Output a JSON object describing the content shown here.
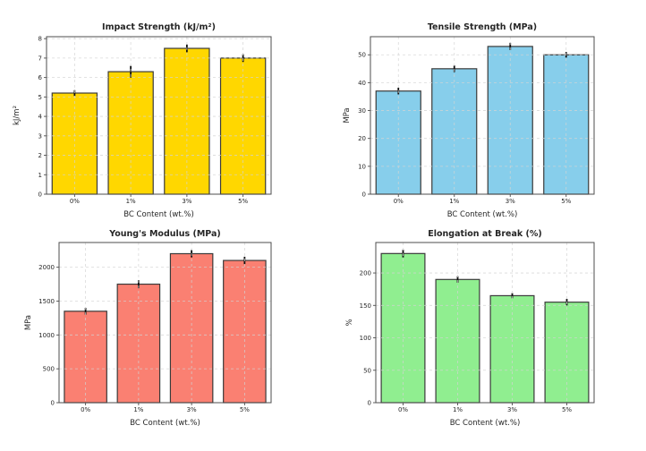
{
  "figure": {
    "background": "#ffffff",
    "spine_color": "#4d4d4d",
    "bar_edge_color": "#3a3a3a",
    "grid_color": "#d4d4d4",
    "error_bar_color": "#111111",
    "text_color": "#262626"
  },
  "chart_data": [
    {
      "type": "bar",
      "title": "Impact Strength (kJ/m²)",
      "xlabel": "BC Content (wt.%)",
      "ylabel": "kJ/m²",
      "categories": [
        "0%",
        "1%",
        "3%",
        "5%"
      ],
      "values": [
        5.2,
        6.3,
        7.5,
        7.0
      ],
      "errors": [
        0.15,
        0.3,
        0.2,
        0.2
      ],
      "bar_color": "#FFD700",
      "ylim": [
        0,
        8.1
      ],
      "yticks": [
        0,
        1,
        2,
        3,
        4,
        5,
        6,
        7,
        8
      ],
      "grid": true,
      "legend": "none",
      "position": "top-left"
    },
    {
      "type": "bar",
      "title": "Tensile Strength (MPa)",
      "xlabel": "BC Content (wt.%)",
      "ylabel": "MPa",
      "categories": [
        "0%",
        "1%",
        "3%",
        "5%"
      ],
      "values": [
        37,
        45,
        53,
        50
      ],
      "errors": [
        1.2,
        1.2,
        1.3,
        1.0
      ],
      "bar_color": "#87CEEB",
      "ylim": [
        0,
        56.5
      ],
      "yticks": [
        0,
        10,
        20,
        30,
        40,
        50
      ],
      "grid": true,
      "legend": "none",
      "position": "top-right"
    },
    {
      "type": "bar",
      "title": "Young's Modulus (MPa)",
      "xlabel": "BC Content (wt.%)",
      "ylabel": "MPa",
      "categories": [
        "0%",
        "1%",
        "3%",
        "5%"
      ],
      "values": [
        1350,
        1750,
        2200,
        2100
      ],
      "errors": [
        50,
        60,
        55,
        55
      ],
      "bar_color": "#FA8072",
      "ylim": [
        0,
        2365
      ],
      "yticks": [
        0,
        500,
        1000,
        1500,
        2000
      ],
      "grid": true,
      "legend": "none",
      "position": "bottom-left"
    },
    {
      "type": "bar",
      "title": "Elongation at Break (%)",
      "xlabel": "BC Content (wt.%)",
      "ylabel": "%",
      "categories": [
        "0%",
        "1%",
        "3%",
        "5%"
      ],
      "values": [
        230,
        190,
        165,
        155
      ],
      "errors": [
        6,
        5,
        4,
        5
      ],
      "bar_color": "#90EE90",
      "ylim": [
        0,
        247
      ],
      "yticks": [
        0,
        50,
        100,
        150,
        200
      ],
      "grid": true,
      "legend": "none",
      "position": "bottom-right"
    }
  ]
}
